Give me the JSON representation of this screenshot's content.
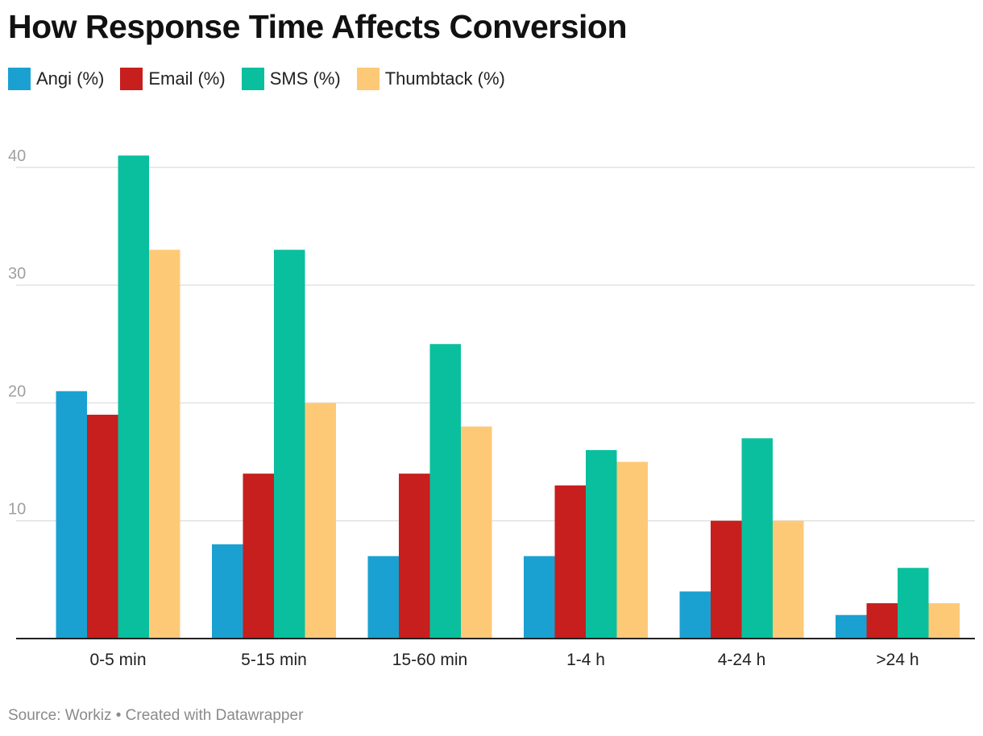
{
  "chart_data": {
    "type": "bar",
    "title": "How Response Time Affects Conversion",
    "categories": [
      "0-5 min",
      "5-15 min",
      "15-60 min",
      "1-4 h",
      "4-24 h",
      ">24 h"
    ],
    "series": [
      {
        "name": "Angi (%)",
        "color": "#1aa1d1",
        "values": [
          21,
          8,
          7,
          7,
          4,
          2
        ]
      },
      {
        "name": "Email (%)",
        "color": "#c71e1e",
        "values": [
          19,
          14,
          14,
          13,
          10,
          3
        ]
      },
      {
        "name": "SMS (%)",
        "color": "#0abf9e",
        "values": [
          41,
          33,
          25,
          16,
          17,
          6
        ]
      },
      {
        "name": "Thumbtack (%)",
        "color": "#fec977",
        "values": [
          33,
          20,
          18,
          15,
          10,
          3
        ]
      }
    ],
    "ylim": [
      0,
      44
    ],
    "yticks": [
      10,
      20,
      30,
      40
    ],
    "grid": true,
    "legend": "top-left"
  },
  "footer": {
    "source": "Source: Workiz • Created with Datawrapper"
  }
}
